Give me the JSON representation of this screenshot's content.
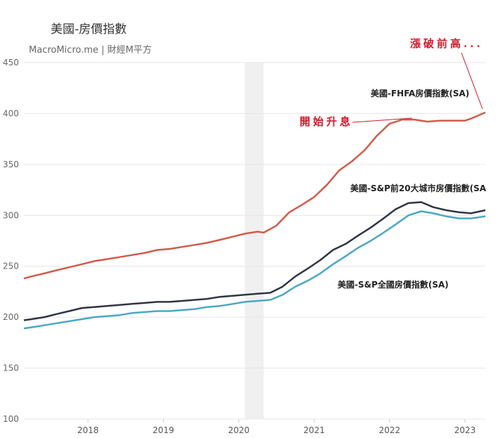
{
  "chart_data": {
    "type": "line",
    "title": "美國-房價指數",
    "subtitle": "MacroMicro.me | 財經M平方",
    "ylim": [
      100,
      450
    ],
    "yticks": [
      100,
      150,
      200,
      250,
      300,
      350,
      400,
      450
    ],
    "xlim": [
      2017.15,
      2023.27
    ],
    "xticks": [
      2018,
      2019,
      2020,
      2021,
      2022,
      2023
    ],
    "grid": true,
    "shaded_region": [
      2020.08,
      2020.33
    ],
    "series": [
      {
        "name": "美國-FHFA房價指數(SA)",
        "color": "#d05c4a",
        "x": [
          2017.15,
          2017.25,
          2017.42,
          2017.58,
          2017.75,
          2017.92,
          2018.08,
          2018.25,
          2018.42,
          2018.58,
          2018.75,
          2018.92,
          2019.08,
          2019.25,
          2019.42,
          2019.58,
          2019.75,
          2019.92,
          2020.08,
          2020.25,
          2020.33,
          2020.5,
          2020.67,
          2020.83,
          2021.0,
          2021.17,
          2021.33,
          2021.5,
          2021.67,
          2021.83,
          2022.0,
          2022.17,
          2022.33,
          2022.5,
          2022.67,
          2022.83,
          2023.0,
          2023.08,
          2023.27
        ],
        "values": [
          238,
          240,
          243,
          246,
          249,
          252,
          255,
          257,
          259,
          261,
          263,
          266,
          267,
          269,
          271,
          273,
          276,
          279,
          282,
          284,
          283,
          290,
          303,
          310,
          318,
          330,
          344,
          353,
          364,
          378,
          390,
          394,
          394,
          392,
          393,
          393,
          393,
          395,
          401
        ]
      },
      {
        "name": "美國-S&P前20大城市房價指數(SA",
        "color": "#2f3542",
        "x": [
          2017.15,
          2017.25,
          2017.42,
          2017.58,
          2017.75,
          2017.92,
          2018.08,
          2018.25,
          2018.42,
          2018.58,
          2018.75,
          2018.92,
          2019.08,
          2019.25,
          2019.42,
          2019.58,
          2019.75,
          2019.92,
          2020.08,
          2020.25,
          2020.42,
          2020.58,
          2020.75,
          2020.92,
          2021.08,
          2021.25,
          2021.42,
          2021.58,
          2021.75,
          2021.92,
          2022.08,
          2022.25,
          2022.42,
          2022.58,
          2022.75,
          2022.92,
          2023.08,
          2023.27
        ],
        "values": [
          197,
          198,
          200,
          203,
          206,
          209,
          210,
          211,
          212,
          213,
          214,
          215,
          215,
          216,
          217,
          218,
          220,
          221,
          222,
          223,
          224,
          230,
          240,
          248,
          256,
          266,
          272,
          280,
          288,
          297,
          306,
          312,
          313,
          308,
          305,
          303,
          302,
          305
        ]
      },
      {
        "name": "美國-S&P全國房價指數(SA)",
        "color": "#4aa8c4",
        "x": [
          2017.15,
          2017.25,
          2017.42,
          2017.58,
          2017.75,
          2017.92,
          2018.08,
          2018.25,
          2018.42,
          2018.58,
          2018.75,
          2018.92,
          2019.08,
          2019.25,
          2019.42,
          2019.58,
          2019.75,
          2019.92,
          2020.08,
          2020.25,
          2020.42,
          2020.58,
          2020.75,
          2020.92,
          2021.08,
          2021.25,
          2021.42,
          2021.58,
          2021.75,
          2021.92,
          2022.08,
          2022.25,
          2022.42,
          2022.58,
          2022.75,
          2022.92,
          2023.08,
          2023.27
        ],
        "values": [
          189,
          190,
          192,
          194,
          196,
          198,
          200,
          201,
          202,
          204,
          205,
          206,
          206,
          207,
          208,
          210,
          211,
          213,
          215,
          216,
          217,
          222,
          230,
          236,
          243,
          252,
          260,
          268,
          275,
          283,
          291,
          300,
          304,
          302,
          299,
          297,
          297,
          299
        ]
      }
    ],
    "annotations": [
      {
        "text": "漲破前高..."
      },
      {
        "text": "開始升息"
      }
    ]
  }
}
